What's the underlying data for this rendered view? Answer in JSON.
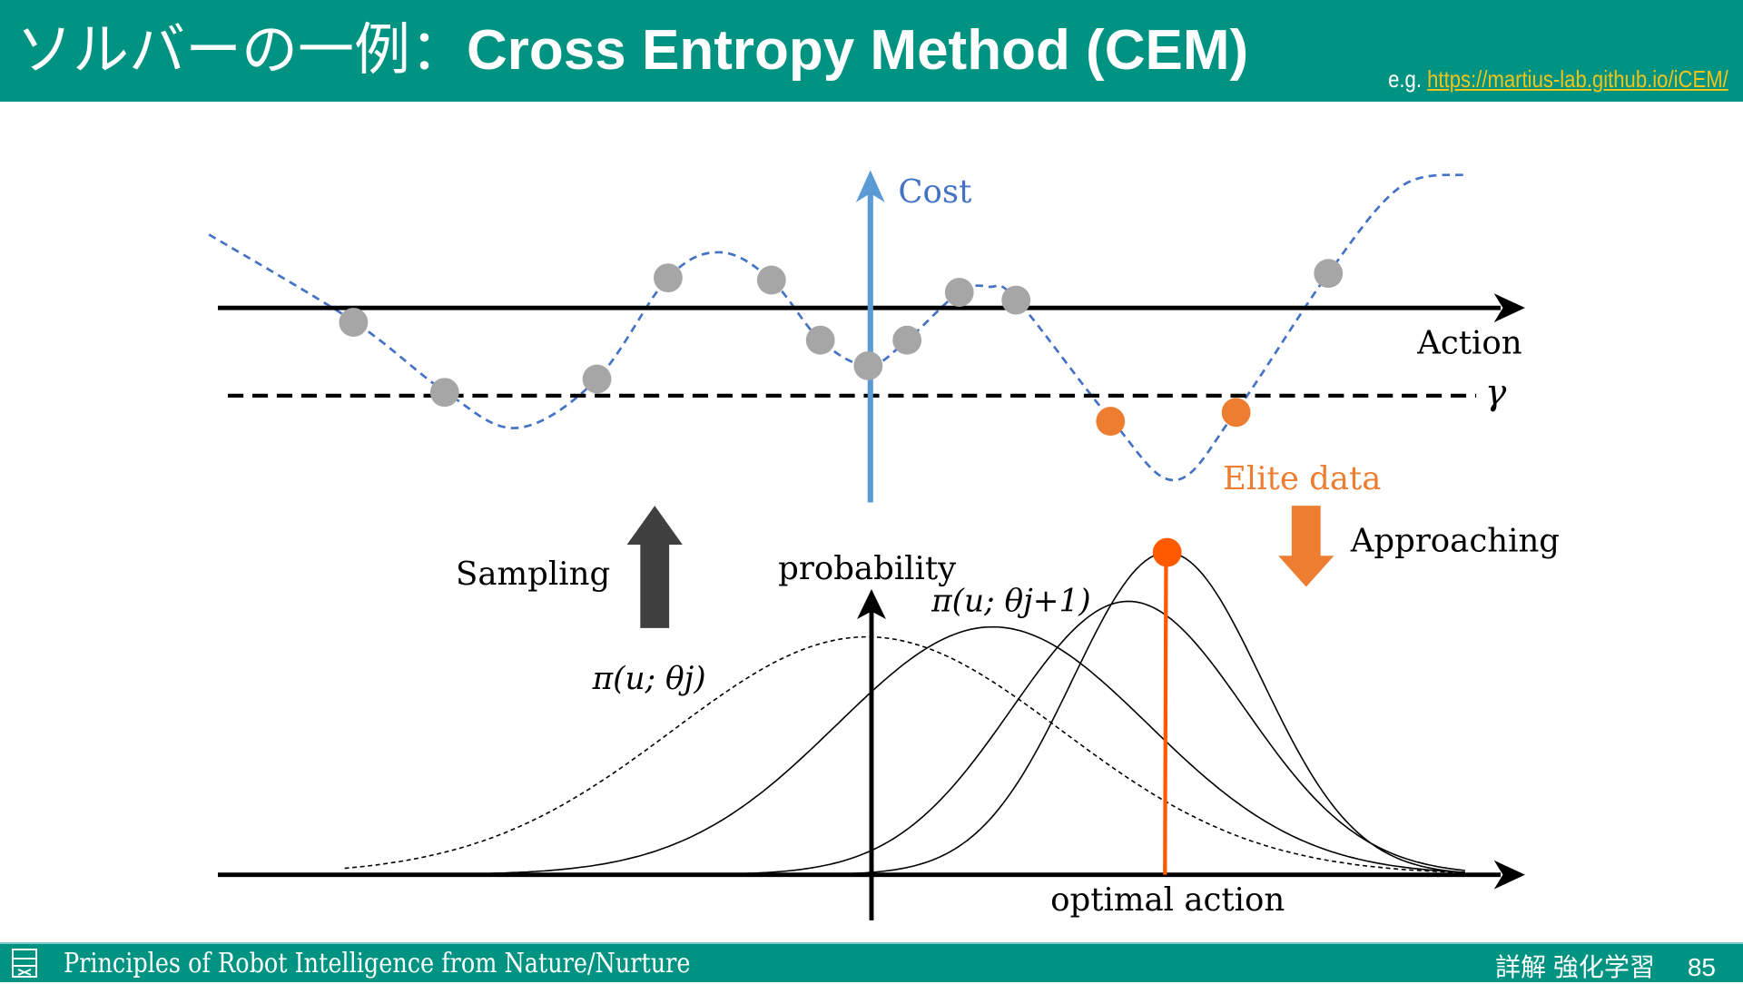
{
  "header": {
    "title_jp": "ソルバーの一例：",
    "title_en": "Cross Entropy Method (CEM)",
    "ref_prefix": "e.g.",
    "ref_link": "https://martius-lab.github.io/iCEM/"
  },
  "diagram": {
    "cost_label": "Cost",
    "action_label": "Action",
    "gamma_label": "γ",
    "elite_label": "Elite data",
    "approaching_label": "Approaching",
    "sampling_label": "Sampling",
    "probability_label": "probability",
    "optimal_label": "optimal action",
    "pi_j_label": "π(u; θj)",
    "pi_j1_label": "π(u; θj+1)",
    "colors": {
      "teal": "#009382",
      "blue_axis": "#5b9bd5",
      "cost_curve": "#4472c4",
      "sample": "#a6a6a6",
      "elite": "#ed7d31",
      "optimum": "#ff5a00",
      "sampling_arrow": "#404040"
    }
  },
  "footer": {
    "course": "Principles of Robot Intelligence from Nature/Nurture",
    "book": "詳解 強化学習",
    "page": "85"
  }
}
